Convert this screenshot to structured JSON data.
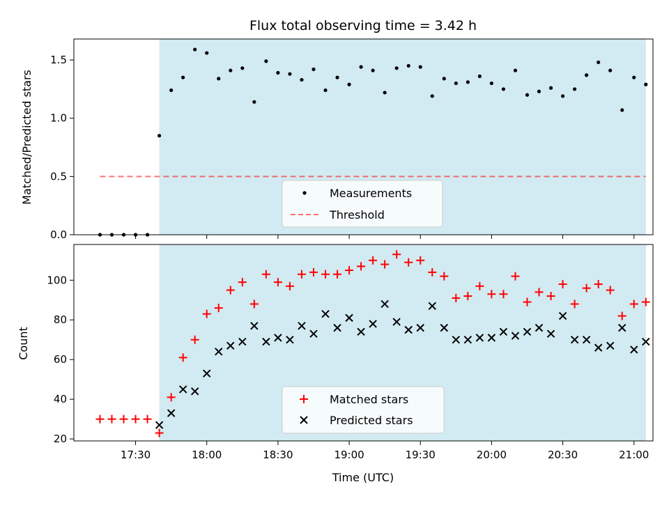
{
  "colors": {
    "shade": "#add8e6",
    "threshold": "#ff0000",
    "matched": "#ff0000",
    "predicted": "#000000",
    "measurement": "#000000"
  },
  "chart_data": [
    {
      "type": "scatter",
      "title": "Flux total observing time = 3.42 h",
      "xlabel": "",
      "ylabel": "Matched/Predicted stars",
      "x_format": "time HH:MM (UTC)",
      "xlim": [
        "17:04",
        "21:08"
      ],
      "ylim": [
        0,
        1.68
      ],
      "yticks": [
        0.0,
        0.5,
        1.0,
        1.5
      ],
      "ytick_labels": [
        "0.0",
        "0.5",
        "1.0",
        "1.5"
      ],
      "observing_window": [
        "17:40",
        "21:05"
      ],
      "legend_position": "lower center",
      "series": [
        {
          "name": "Measurements",
          "kind": "scatter",
          "marker": "dot",
          "x": [
            "17:15",
            "17:20",
            "17:25",
            "17:30",
            "17:35",
            "17:40",
            "17:45",
            "17:50",
            "17:55",
            "18:00",
            "18:05",
            "18:10",
            "18:15",
            "18:20",
            "18:25",
            "18:30",
            "18:35",
            "18:40",
            "18:45",
            "18:50",
            "18:55",
            "19:00",
            "19:05",
            "19:10",
            "19:15",
            "19:20",
            "19:25",
            "19:30",
            "19:35",
            "19:40",
            "19:45",
            "19:50",
            "19:55",
            "20:00",
            "20:05",
            "20:10",
            "20:15",
            "20:20",
            "20:25",
            "20:30",
            "20:35",
            "20:40",
            "20:45",
            "20:50",
            "20:55",
            "21:00",
            "21:05"
          ],
          "y": [
            0,
            0,
            0,
            0,
            0,
            0.85,
            1.24,
            1.35,
            1.59,
            1.56,
            1.34,
            1.41,
            1.43,
            1.14,
            1.49,
            1.39,
            1.38,
            1.33,
            1.42,
            1.24,
            1.35,
            1.29,
            1.44,
            1.41,
            1.22,
            1.43,
            1.45,
            1.44,
            1.19,
            1.34,
            1.3,
            1.31,
            1.36,
            1.3,
            1.25,
            1.41,
            1.2,
            1.23,
            1.26,
            1.19,
            1.25,
            1.37,
            1.48,
            1.41,
            1.07,
            1.35,
            1.29
          ]
        },
        {
          "name": "Threshold",
          "kind": "line",
          "style": "dashed",
          "x": [
            "17:15",
            "21:05"
          ],
          "y": [
            0.5,
            0.5
          ]
        }
      ]
    },
    {
      "type": "scatter",
      "title": "",
      "xlabel": "Time (UTC)",
      "ylabel": "Count",
      "x_format": "time HH:MM (UTC)",
      "xlim": [
        "17:04",
        "21:08"
      ],
      "ylim": [
        19,
        118
      ],
      "yticks": [
        20,
        40,
        60,
        80,
        100
      ],
      "ytick_labels": [
        "20",
        "40",
        "60",
        "80",
        "100"
      ],
      "xticks": [
        "17:30",
        "18:00",
        "18:30",
        "19:00",
        "19:30",
        "20:00",
        "20:30",
        "21:00"
      ],
      "xtick_labels": [
        "17:30",
        "18:00",
        "18:30",
        "19:00",
        "19:30",
        "20:00",
        "20:30",
        "21:00"
      ],
      "observing_window": [
        "17:40",
        "21:05"
      ],
      "legend_position": "lower center",
      "series": [
        {
          "name": "Matched stars",
          "kind": "scatter",
          "marker": "plus",
          "x": [
            "17:15",
            "17:20",
            "17:25",
            "17:30",
            "17:35",
            "17:40",
            "17:45",
            "17:50",
            "17:55",
            "18:00",
            "18:05",
            "18:10",
            "18:15",
            "18:20",
            "18:25",
            "18:30",
            "18:35",
            "18:40",
            "18:45",
            "18:50",
            "18:55",
            "19:00",
            "19:05",
            "19:10",
            "19:15",
            "19:20",
            "19:25",
            "19:30",
            "19:35",
            "19:40",
            "19:45",
            "19:50",
            "19:55",
            "20:00",
            "20:05",
            "20:10",
            "20:15",
            "20:20",
            "20:25",
            "20:30",
            "20:35",
            "20:40",
            "20:45",
            "20:50",
            "20:55",
            "21:00",
            "21:05"
          ],
          "y": [
            30,
            30,
            30,
            30,
            30,
            23,
            41,
            61,
            70,
            83,
            86,
            95,
            99,
            88,
            103,
            99,
            97,
            103,
            104,
            103,
            103,
            105,
            107,
            110,
            108,
            113,
            109,
            110,
            104,
            102,
            91,
            92,
            97,
            93,
            93,
            102,
            89,
            94,
            92,
            98,
            88,
            96,
            98,
            95,
            82,
            88,
            89
          ]
        },
        {
          "name": "Predicted stars",
          "kind": "scatter",
          "marker": "x",
          "x": [
            "17:40",
            "17:45",
            "17:50",
            "17:55",
            "18:00",
            "18:05",
            "18:10",
            "18:15",
            "18:20",
            "18:25",
            "18:30",
            "18:35",
            "18:40",
            "18:45",
            "18:50",
            "18:55",
            "19:00",
            "19:05",
            "19:10",
            "19:15",
            "19:20",
            "19:25",
            "19:30",
            "19:35",
            "19:40",
            "19:45",
            "19:50",
            "19:55",
            "20:00",
            "20:05",
            "20:10",
            "20:15",
            "20:20",
            "20:25",
            "20:30",
            "20:35",
            "20:40",
            "20:45",
            "20:50",
            "20:55",
            "21:00",
            "21:05"
          ],
          "y": [
            27,
            33,
            45,
            44,
            53,
            64,
            67,
            69,
            77,
            69,
            71,
            70,
            77,
            73,
            83,
            76,
            81,
            74,
            78,
            88,
            79,
            75,
            76,
            87,
            76,
            70,
            70,
            71,
            71,
            74,
            72,
            74,
            76,
            73,
            82,
            70,
            70,
            66,
            67,
            76,
            65,
            69
          ]
        }
      ]
    }
  ]
}
